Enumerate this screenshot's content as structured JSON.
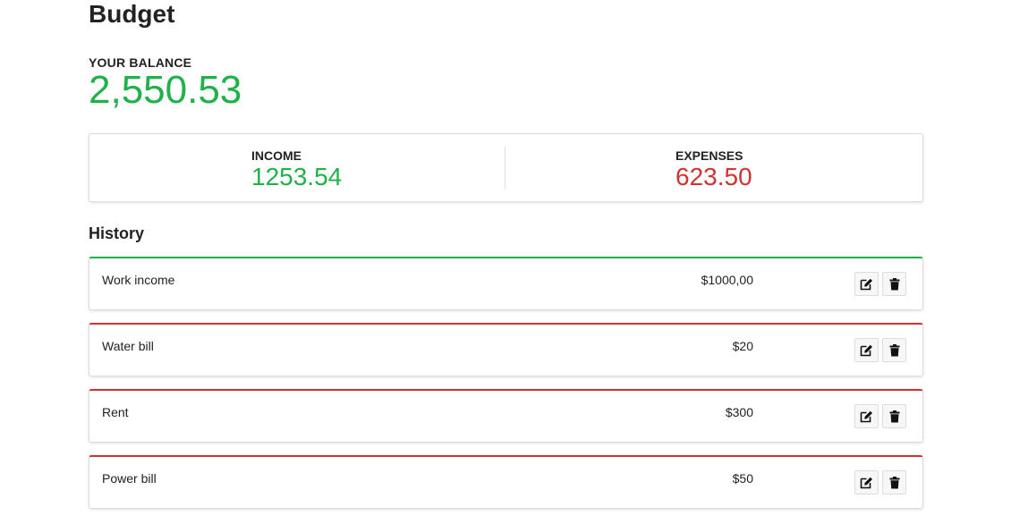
{
  "title": "Budget",
  "balance": {
    "label": "YOUR BALANCE",
    "value": "2,550.53"
  },
  "summary": {
    "income": {
      "label": "INCOME",
      "value": "1253.54"
    },
    "expenses": {
      "label": "EXPENSES",
      "value": "623.50"
    }
  },
  "history": {
    "title": "History",
    "items": [
      {
        "name": "Work income",
        "amount": "$1000,00",
        "type": "income"
      },
      {
        "name": "Water bill",
        "amount": "$20",
        "type": "expense"
      },
      {
        "name": "Rent",
        "amount": "$300",
        "type": "expense"
      },
      {
        "name": "Power bill",
        "amount": "$50",
        "type": "expense"
      }
    ],
    "actions": {
      "edit_icon": "edit-icon",
      "delete_icon": "trash-icon"
    }
  },
  "colors": {
    "income": "#21b14a",
    "expense": "#d23232"
  }
}
